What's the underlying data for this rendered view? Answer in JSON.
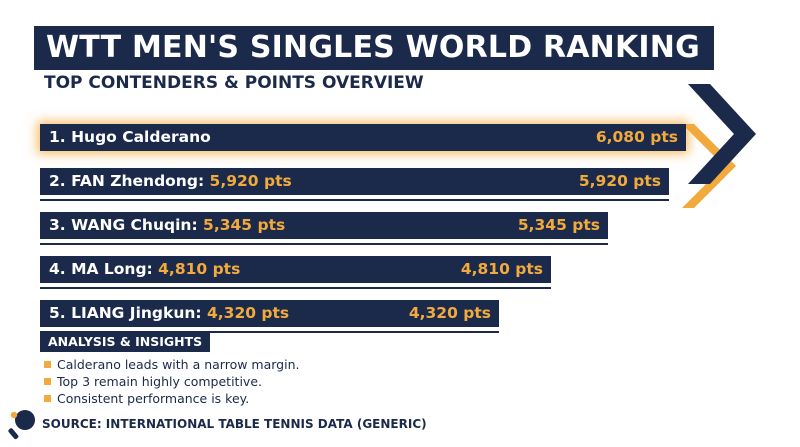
{
  "title": "WTT MEN'S SINGLES WORLD RANKING",
  "subtitle": "TOP CONTENDERS & POINTS OVERVIEW",
  "colors": {
    "navy": "#1b2a4a",
    "accent": "#f2aa3c",
    "background": "#ffffff"
  },
  "chart_data": {
    "type": "bar",
    "orientation": "horizontal",
    "title": "WTT MEN'S SINGLES WORLD RANKING",
    "subtitle": "TOP CONTENDERS & POINTS OVERVIEW",
    "categories": [
      "1. Hugo Calderano",
      "2. FAN Zhendong",
      "3. WANG Chuqin",
      "4. MA Long",
      "5. LIANG Jingkun"
    ],
    "values": [
      6080,
      5920,
      5345,
      4810,
      4320
    ],
    "value_labels": [
      "6,080 pts",
      "5,920 pts",
      "5,345 pts",
      "4,810 pts",
      "4,320 pts"
    ],
    "inline_points": [
      "",
      "5,920 pts",
      "5,345 pts",
      "4,810 pts",
      "4,320 pts"
    ],
    "xlim": [
      0,
      6080
    ],
    "highlighted_index": 0,
    "grid": false,
    "legend": "none"
  },
  "insights": {
    "heading": "ANALYSIS & INSIGHTS",
    "items": [
      "Calderano leads with a narrow margin.",
      "Top 3 remain highly competitive.",
      "Consistent performance is key."
    ]
  },
  "source": "SOURCE: INTERNATIONAL TABLE TENNIS DATA (GENERIC)",
  "icons": {
    "footer": "table-tennis-paddle-icon",
    "decoration": "chevron-right-icon"
  }
}
